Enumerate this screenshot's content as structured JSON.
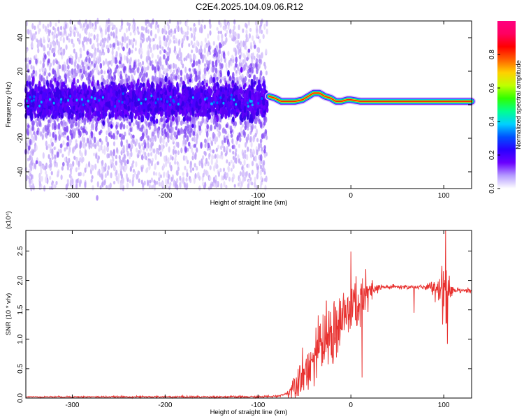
{
  "title": "C2E4.2025.104.09.06.R12",
  "chart_data": [
    {
      "type": "heatmap",
      "panel": "spectrogram",
      "xlabel": "Height of straight line (km)",
      "ylabel": "Frequency (Hz)",
      "xlim": [
        -350,
        130
      ],
      "ylim": [
        -50,
        50
      ],
      "xticks": [
        -300,
        -200,
        -100,
        0,
        100
      ],
      "yticks": [
        -40,
        -20,
        0,
        20,
        40
      ],
      "colorbar": {
        "label": "Normalized spectral amplitude",
        "range": [
          0,
          1
        ],
        "ticks": [
          0.0,
          0.2,
          0.4,
          0.6,
          0.8
        ],
        "colors": [
          "#ffffff",
          "#b59cff",
          "#6a00ff",
          "#2a00ff",
          "#0050ff",
          "#00d0ff",
          "#00ff90",
          "#30ff00",
          "#c0ff00",
          "#ffd000",
          "#ff6000",
          "#ff0000",
          "#ff0060",
          "#ff0080"
        ]
      },
      "noise_region": {
        "x": [
          -350,
          -90
        ],
        "freq_center": 2,
        "band_halfwidth": 8,
        "spread": 48
      },
      "tone_line": [
        [
          -88,
          5
        ],
        [
          -82,
          4
        ],
        [
          -75,
          2
        ],
        [
          -68,
          2
        ],
        [
          -60,
          2
        ],
        [
          -52,
          3
        ],
        [
          -46,
          5
        ],
        [
          -40,
          7
        ],
        [
          -34,
          7
        ],
        [
          -28,
          5
        ],
        [
          -22,
          4
        ],
        [
          -16,
          2
        ],
        [
          -10,
          2
        ],
        [
          -4,
          3
        ],
        [
          0,
          3
        ],
        [
          10,
          2
        ],
        [
          40,
          2
        ],
        [
          80,
          2
        ],
        [
          100,
          2
        ],
        [
          130,
          2
        ]
      ]
    },
    {
      "type": "line",
      "panel": "snr",
      "xlabel": "Height of straight line (km)",
      "ylabel": "SNR (10 * v/v)",
      "y_multiplier": "(x10⁴)",
      "xlim": [
        -350,
        130
      ],
      "ylim": [
        0,
        2.85
      ],
      "xticks": [
        -300,
        -200,
        -100,
        0,
        100
      ],
      "yticks": [
        0.0,
        0.5,
        1.0,
        1.5,
        2.0,
        2.5
      ],
      "series": [
        {
          "color": "#e8312f",
          "envelope": [
            [
              -350,
              0.02
            ],
            [
              -250,
              0.02
            ],
            [
              -150,
              0.02
            ],
            [
              -100,
              0.02
            ],
            [
              -80,
              0.03
            ],
            [
              -68,
              0.08
            ],
            [
              -60,
              0.25
            ],
            [
              -50,
              0.45
            ],
            [
              -40,
              0.65
            ],
            [
              -30,
              0.9
            ],
            [
              -20,
              1.1
            ],
            [
              -10,
              1.3
            ],
            [
              0,
              1.5
            ],
            [
              10,
              1.65
            ],
            [
              20,
              1.78
            ],
            [
              30,
              1.87
            ],
            [
              40,
              1.89
            ],
            [
              60,
              1.89
            ],
            [
              80,
              1.88
            ],
            [
              95,
              1.88
            ],
            [
              110,
              1.85
            ],
            [
              130,
              1.82
            ]
          ],
          "noise_amplitude": [
            [
              -350,
              0.01
            ],
            [
              -70,
              0.02
            ],
            [
              -60,
              0.25
            ],
            [
              -40,
              0.45
            ],
            [
              -20,
              0.6
            ],
            [
              0,
              0.6
            ],
            [
              10,
              0.5
            ],
            [
              25,
              0.15
            ],
            [
              35,
              0.04
            ],
            [
              80,
              0.04
            ],
            [
              88,
              0.12
            ],
            [
              98,
              0.4
            ],
            [
              104,
              0.8
            ],
            [
              110,
              0.06
            ],
            [
              130,
              0.03
            ]
          ],
          "spikes": [
            [
              -55,
              0.55
            ],
            [
              -30,
              1.42
            ],
            [
              -18,
              1.65
            ],
            [
              5,
              1.33
            ],
            [
              12,
              2.08
            ],
            [
              12,
              0.35
            ],
            [
              68,
              1.45
            ],
            [
              102,
              2.85
            ],
            [
              104,
              0.92
            ]
          ]
        }
      ]
    }
  ]
}
